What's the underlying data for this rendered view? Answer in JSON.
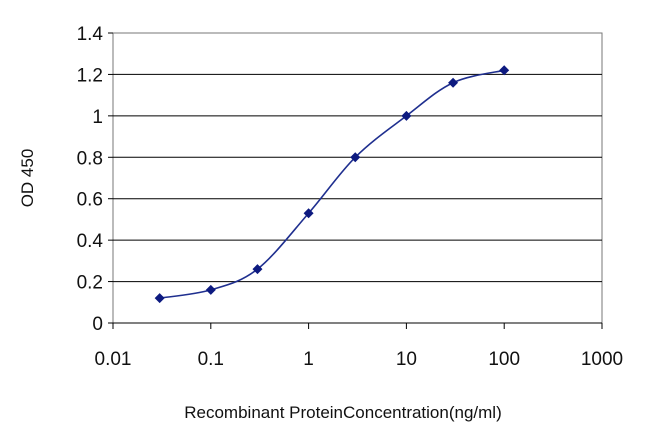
{
  "chart_data": {
    "type": "line",
    "title": "",
    "xlabel": "Recombinant ProteinConcentration(ng/ml)",
    "ylabel": "OD 450",
    "xscale": "log",
    "xlim": [
      0.01,
      1000
    ],
    "ylim": [
      0,
      1.4
    ],
    "grid": "horizontal",
    "legend": "none",
    "x_ticks": [
      "0.01",
      "0.1",
      "1",
      "10",
      "100",
      "1000"
    ],
    "x_tick_values": [
      0.01,
      0.1,
      1,
      10,
      100,
      1000
    ],
    "y_ticks": [
      "0",
      "0.2",
      "0.4",
      "0.6",
      "0.8",
      "1",
      "1.2",
      "1.4"
    ],
    "y_tick_values": [
      0,
      0.2,
      0.4,
      0.6,
      0.8,
      1,
      1.2,
      1.4
    ],
    "series": [
      {
        "x": [
          0.03,
          0.1,
          0.3,
          1,
          3,
          10,
          30,
          100
        ],
        "y": [
          0.12,
          0.16,
          0.26,
          0.53,
          0.8,
          1.0,
          1.16,
          1.22
        ],
        "color": "#1f2f8f"
      }
    ]
  }
}
